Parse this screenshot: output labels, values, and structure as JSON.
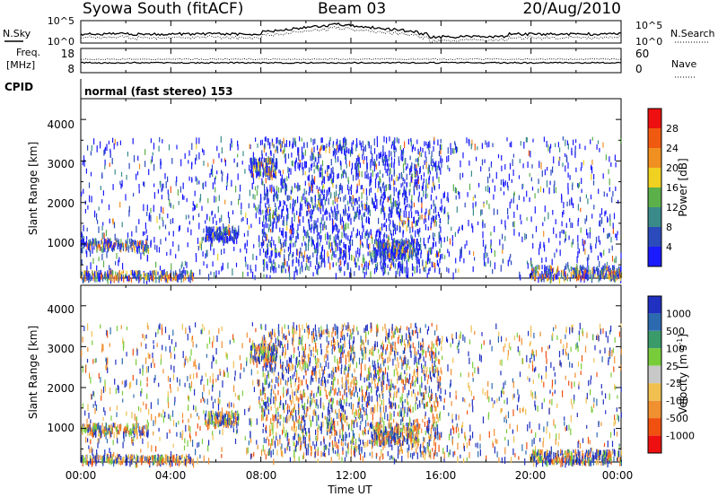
{
  "header": {
    "station": "Syowa South (fitACF)",
    "beam": "Beam 03",
    "date": "20/Aug/2010"
  },
  "time_axis": {
    "label": "Time UT",
    "ticks": [
      "00:00",
      "04:00",
      "08:00",
      "12:00",
      "16:00",
      "20:00",
      "00:00"
    ]
  },
  "noise_panel": {
    "left_label": "N.Sky",
    "right_label": "N.Search",
    "left_ticks": [
      "10^5",
      "10^0"
    ],
    "right_ticks": [
      "10^5",
      "10^0"
    ]
  },
  "freq_panel": {
    "left_label_1": "Freq.",
    "left_label_2": "[MHz]",
    "right_label": "Nave",
    "left_ticks": [
      "18",
      "8"
    ],
    "right_ticks": [
      "60",
      "0"
    ]
  },
  "cpid": {
    "label": "CPID",
    "text": "normal (fast stereo) 153"
  },
  "power_panel": {
    "ylabel": "Slant Range [km]",
    "yticks": [
      "1000",
      "2000",
      "3000",
      "4000"
    ],
    "colorbar_label": "Power [dB]",
    "colorbar_ticks": [
      "4",
      "8",
      "12",
      "16",
      "20",
      "24",
      "28"
    ],
    "colorbar_colors": [
      "#1a1aff",
      "#2b4bbd",
      "#3a8a8a",
      "#5cb04a",
      "#f0d020",
      "#f09020",
      "#f05a10",
      "#ee1010"
    ]
  },
  "velocity_panel": {
    "ylabel": "Slant Range [km]",
    "yticks": [
      "1000",
      "2000",
      "3000",
      "4000"
    ],
    "colorbar_label": "Velocity [m s",
    "colorbar_exp": "-1",
    "colorbar_label_close": "]",
    "colorbar_ticks": [
      "1000",
      "500",
      "100",
      "25",
      "-25",
      "-100",
      "-500",
      "-1000"
    ],
    "colorbar_colors": [
      "#2030c0",
      "#2c6ab0",
      "#3a9a6a",
      "#78cc3a",
      "#c8c8c8",
      "#f0c050",
      "#f09030",
      "#f05010",
      "#ee1010"
    ]
  },
  "chart_data": {
    "type": "heatmap",
    "x_range_hours": [
      0,
      24
    ],
    "range_km": [
      180,
      4500
    ],
    "panels": [
      "noise",
      "frequency",
      "power",
      "velocity"
    ]
  }
}
